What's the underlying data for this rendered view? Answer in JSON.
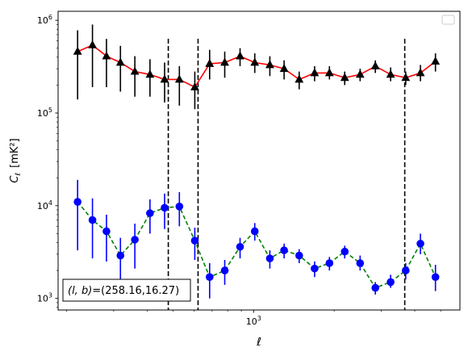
{
  "chart_data": {
    "type": "line",
    "xlabel": "ℓ",
    "ylabel_main": "C",
    "ylabel_sub": "ℓ",
    "ylabel_units": "[mK²]",
    "xscale": "log",
    "yscale": "log",
    "xlim": [
      186,
      5900
    ],
    "ylim": [
      750,
      1250000
    ],
    "x_major_ticks": [
      {
        "value": 1000,
        "base": "10",
        "exp": "3"
      }
    ],
    "y_major_ticks": [
      {
        "value": 1000,
        "base": "10",
        "exp": "3"
      },
      {
        "value": 10000,
        "base": "10",
        "exp": "4"
      },
      {
        "value": 100000,
        "base": "10",
        "exp": "5"
      },
      {
        "value": 1000000,
        "base": "10",
        "exp": "6"
      }
    ],
    "vlines": [
      480,
      620,
      3670
    ],
    "annotation": "(l, b)=(258.16,16.27)",
    "annotation_math": "(l, b)",
    "annotation_value": "=(258.16,16.27)",
    "legend": "empty box, top-right",
    "series": [
      {
        "line_color": "#ff0000",
        "line_style": "solid",
        "marker": "triangle",
        "marker_color": "#000000",
        "errorbar_color": "#000000",
        "points": [
          {
            "x": 220,
            "y": 460000,
            "lo": 140000,
            "hi": 780000
          },
          {
            "x": 250,
            "y": 540000,
            "lo": 190000,
            "hi": 900000
          },
          {
            "x": 282,
            "y": 410000,
            "lo": 190000,
            "hi": 630000
          },
          {
            "x": 318,
            "y": 350000,
            "lo": 170000,
            "hi": 530000
          },
          {
            "x": 360,
            "y": 280000,
            "lo": 150000,
            "hi": 410000
          },
          {
            "x": 410,
            "y": 260000,
            "lo": 150000,
            "hi": 380000
          },
          {
            "x": 465,
            "y": 230000,
            "lo": 130000,
            "hi": 350000
          },
          {
            "x": 528,
            "y": 230000,
            "lo": 120000,
            "hi": 320000
          },
          {
            "x": 603,
            "y": 190000,
            "lo": 110000,
            "hi": 280000
          },
          {
            "x": 685,
            "y": 340000,
            "lo": 230000,
            "hi": 480000
          },
          {
            "x": 780,
            "y": 350000,
            "lo": 240000,
            "hi": 460000
          },
          {
            "x": 890,
            "y": 410000,
            "lo": 320000,
            "hi": 500000
          },
          {
            "x": 1010,
            "y": 350000,
            "lo": 270000,
            "hi": 440000
          },
          {
            "x": 1150,
            "y": 330000,
            "lo": 250000,
            "hi": 410000
          },
          {
            "x": 1300,
            "y": 300000,
            "lo": 230000,
            "hi": 370000
          },
          {
            "x": 1480,
            "y": 230000,
            "lo": 180000,
            "hi": 280000
          },
          {
            "x": 1690,
            "y": 270000,
            "lo": 220000,
            "hi": 320000
          },
          {
            "x": 1920,
            "y": 270000,
            "lo": 230000,
            "hi": 320000
          },
          {
            "x": 2190,
            "y": 240000,
            "lo": 200000,
            "hi": 280000
          },
          {
            "x": 2500,
            "y": 260000,
            "lo": 220000,
            "hi": 300000
          },
          {
            "x": 2850,
            "y": 320000,
            "lo": 270000,
            "hi": 370000
          },
          {
            "x": 3250,
            "y": 260000,
            "lo": 220000,
            "hi": 310000
          },
          {
            "x": 3700,
            "y": 240000,
            "lo": 200000,
            "hi": 280000
          },
          {
            "x": 4200,
            "y": 270000,
            "lo": 220000,
            "hi": 330000
          },
          {
            "x": 4780,
            "y": 360000,
            "lo": 280000,
            "hi": 440000
          }
        ]
      },
      {
        "line_color": "#008000",
        "line_style": "dashed",
        "marker": "circle",
        "marker_color": "#0000ff",
        "errorbar_color": "#0000ff",
        "points": [
          {
            "x": 220,
            "y": 11000,
            "lo": 3300,
            "hi": 19000
          },
          {
            "x": 250,
            "y": 7000,
            "lo": 2700,
            "hi": 12000
          },
          {
            "x": 282,
            "y": 5300,
            "lo": 2500,
            "hi": 8000
          },
          {
            "x": 318,
            "y": 2900,
            "lo": 1300,
            "hi": 4500
          },
          {
            "x": 360,
            "y": 4300,
            "lo": 2100,
            "hi": 6400
          },
          {
            "x": 410,
            "y": 8300,
            "lo": 5000,
            "hi": 11700
          },
          {
            "x": 465,
            "y": 9500,
            "lo": 5600,
            "hi": 13500
          },
          {
            "x": 528,
            "y": 9800,
            "lo": 6000,
            "hi": 14000
          },
          {
            "x": 603,
            "y": 4200,
            "lo": 2600,
            "hi": 5800
          },
          {
            "x": 685,
            "y": 1700,
            "lo": 1000,
            "hi": 2400
          },
          {
            "x": 780,
            "y": 2000,
            "lo": 1400,
            "hi": 2600
          },
          {
            "x": 890,
            "y": 3600,
            "lo": 2700,
            "hi": 4500
          },
          {
            "x": 1010,
            "y": 5300,
            "lo": 4200,
            "hi": 6500
          },
          {
            "x": 1150,
            "y": 2700,
            "lo": 2100,
            "hi": 3300
          },
          {
            "x": 1300,
            "y": 3300,
            "lo": 2700,
            "hi": 3900
          },
          {
            "x": 1480,
            "y": 2900,
            "lo": 2400,
            "hi": 3400
          },
          {
            "x": 1690,
            "y": 2100,
            "lo": 1700,
            "hi": 2500
          },
          {
            "x": 1920,
            "y": 2400,
            "lo": 2000,
            "hi": 2800
          },
          {
            "x": 2190,
            "y": 3200,
            "lo": 2700,
            "hi": 3700
          },
          {
            "x": 2500,
            "y": 2400,
            "lo": 2000,
            "hi": 2900
          },
          {
            "x": 2850,
            "y": 1300,
            "lo": 1100,
            "hi": 1500
          },
          {
            "x": 3250,
            "y": 1500,
            "lo": 1300,
            "hi": 1800
          },
          {
            "x": 3700,
            "y": 2000,
            "lo": 1600,
            "hi": 2400
          },
          {
            "x": 4200,
            "y": 3900,
            "lo": 3000,
            "hi": 5000
          },
          {
            "x": 4780,
            "y": 1700,
            "lo": 1200,
            "hi": 2300
          }
        ]
      }
    ]
  }
}
